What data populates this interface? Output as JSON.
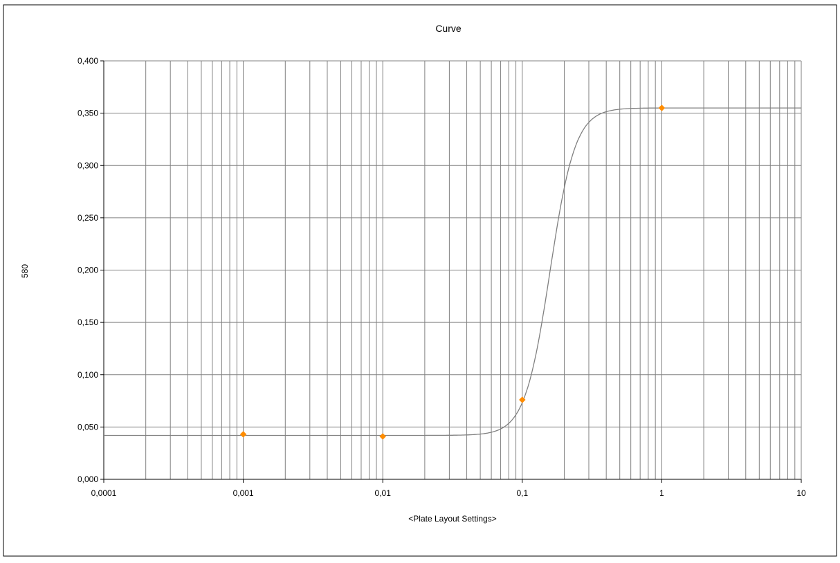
{
  "chart_data": {
    "type": "scatter",
    "title": "Curve",
    "xlabel": "<Plate Layout Settings>",
    "ylabel": "580",
    "x_scale": "log",
    "xlim": [
      0.0001,
      10
    ],
    "ylim": [
      0.0,
      0.4
    ],
    "x_tick_labels": [
      "0,0001",
      "0,001",
      "0,01",
      "0,1",
      "1",
      "10"
    ],
    "y_tick_labels": [
      "0,000",
      "0,050",
      "0,100",
      "0,150",
      "0,200",
      "0,250",
      "0,300",
      "0,350",
      "0,400"
    ],
    "grid": true,
    "legend": "none",
    "series": [
      {
        "kind": "points",
        "marker": "diamond",
        "x": [
          0.001,
          0.01,
          0.1,
          1
        ],
        "y": [
          0.043,
          0.041,
          0.076,
          0.355
        ]
      },
      {
        "kind": "fitted-curve",
        "model": "4-parameter logistic",
        "bottom": 0.042,
        "top": 0.355,
        "ec50": 0.158,
        "hill_slope": 4.8
      }
    ],
    "colors": {
      "points": "#ff8c00",
      "curve": "#808080",
      "grid": "#808080",
      "axes": "#000000"
    }
  }
}
